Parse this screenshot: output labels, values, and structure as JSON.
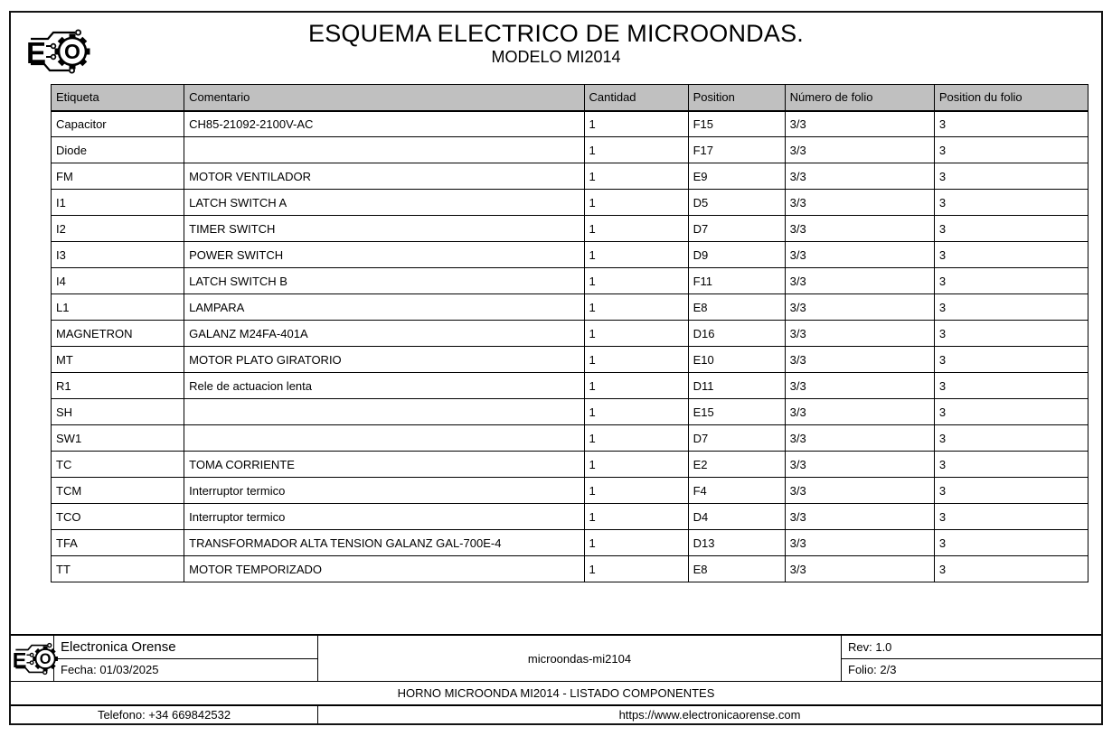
{
  "header": {
    "title": "ESQUEMA ELECTRICO DE MICROONDAS.",
    "subtitle": "MODELO MI2014"
  },
  "logo": {
    "letter_e": "E",
    "letter_o": "O"
  },
  "table": {
    "columns": [
      "Etiqueta",
      "Comentario",
      "Cantidad",
      "Position",
      "Número de folio",
      "Position du folio"
    ],
    "rows": [
      [
        "Capacitor",
        "CH85-21092-2100V-AC",
        "1",
        "F15",
        "3/3",
        "3"
      ],
      [
        "Diode",
        "",
        "1",
        "F17",
        "3/3",
        "3"
      ],
      [
        "FM",
        "MOTOR VENTILADOR",
        "1",
        "E9",
        "3/3",
        "3"
      ],
      [
        "I1",
        "LATCH SWITCH A",
        "1",
        "D5",
        "3/3",
        "3"
      ],
      [
        "I2",
        "TIMER SWITCH",
        "1",
        "D7",
        "3/3",
        "3"
      ],
      [
        "I3",
        "POWER SWITCH",
        "1",
        "D9",
        "3/3",
        "3"
      ],
      [
        "I4",
        "LATCH SWITCH B",
        "1",
        "F11",
        "3/3",
        "3"
      ],
      [
        "L1",
        "LAMPARA",
        "1",
        "E8",
        "3/3",
        "3"
      ],
      [
        "MAGNETRON",
        "GALANZ M24FA-401A",
        "1",
        "D16",
        "3/3",
        "3"
      ],
      [
        "MT",
        "MOTOR PLATO GIRATORIO",
        "1",
        "E10",
        "3/3",
        "3"
      ],
      [
        "R1",
        "Rele de actuacion lenta",
        "1",
        "D11",
        "3/3",
        "3"
      ],
      [
        "SH",
        "",
        "1",
        "E15",
        "3/3",
        "3"
      ],
      [
        "SW1",
        "",
        "1",
        "D7",
        "3/3",
        "3"
      ],
      [
        "TC",
        "TOMA CORRIENTE",
        "1",
        "E2",
        "3/3",
        "3"
      ],
      [
        "TCM",
        "Interruptor termico",
        "1",
        "F4",
        "3/3",
        "3"
      ],
      [
        "TCO",
        "Interruptor termico",
        "1",
        "D4",
        "3/3",
        "3"
      ],
      [
        "TFA",
        "TRANSFORMADOR ALTA TENSION GALANZ GAL-700E-4",
        "1",
        "D13",
        "3/3",
        "3"
      ],
      [
        "TT",
        "MOTOR TEMPORIZADO",
        "1",
        "E8",
        "3/3",
        "3"
      ]
    ]
  },
  "footer": {
    "company": "Electronica Orense",
    "date": "Fecha: 01/03/2025",
    "document_name": "microondas-mi2104",
    "rev": "Rev: 1.0",
    "folio": "Folio: 2/3",
    "sheet_title": "HORNO MICROONDA MI2014 - LISTADO COMPONENTES",
    "phone": "Telefono: +34 669842532",
    "website": "https://www.electronicaorense.com"
  },
  "colors": {
    "table_header_bg": "#c0c0c0",
    "border": "#000000",
    "background": "#ffffff"
  }
}
